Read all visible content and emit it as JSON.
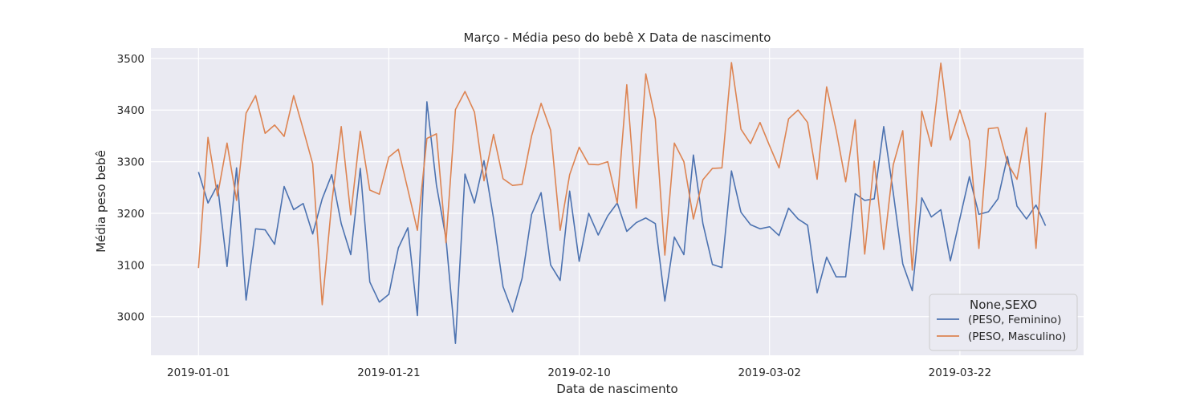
{
  "chart_data": {
    "type": "line",
    "title": "Março - Média peso do bebê X Data de nascimento",
    "xlabel": "Data de nascimento",
    "ylabel": "Média peso bebê",
    "x_start": "2019-01-01",
    "x_ticks": [
      "2019-01-01",
      "2019-01-21",
      "2019-02-10",
      "2019-03-02",
      "2019-03-22"
    ],
    "y_ticks": [
      3000,
      3100,
      3200,
      3300,
      3400,
      3500
    ],
    "xlim": [
      "2018-12-27",
      "2019-04-04"
    ],
    "ylim": [
      2925,
      3520
    ],
    "grid": true,
    "legend": {
      "title": "None,SEXO",
      "placement": "lower-right"
    },
    "series": [
      {
        "name": "(PESO, Feminino)",
        "color": "#4c72b0",
        "values": [
          3280,
          3220,
          3255,
          3097,
          3288,
          3032,
          3170,
          3168,
          3140,
          3252,
          3207,
          3219,
          3160,
          3228,
          3275,
          3180,
          3120,
          3287,
          3067,
          3028,
          3043,
          3133,
          3172,
          3002,
          3416,
          3255,
          3152,
          2948,
          3276,
          3220,
          3302,
          3190,
          3058,
          3009,
          3074,
          3198,
          3240,
          3100,
          3070,
          3243,
          3107,
          3200,
          3158,
          3195,
          3220,
          3165,
          3182,
          3191,
          3180,
          3030,
          3154,
          3120,
          3313,
          3180,
          3101,
          3095,
          3282,
          3202,
          3178,
          3170,
          3174,
          3157,
          3210,
          3189,
          3177,
          3046,
          3115,
          3077,
          3077,
          3238,
          3225,
          3228,
          3368,
          3240,
          3102,
          3050,
          3230,
          3193,
          3207,
          3108,
          3190,
          3271,
          3198,
          3203,
          3228,
          3310,
          3214,
          3189,
          3216,
          3176
        ]
      },
      {
        "name": "(PESO, Masculino)",
        "color": "#dd8452",
        "values": [
          3094,
          3347,
          3234,
          3336,
          3225,
          3394,
          3428,
          3355,
          3371,
          3349,
          3428,
          3363,
          3296,
          3023,
          3220,
          3368,
          3197,
          3359,
          3245,
          3237,
          3309,
          3324,
          3246,
          3167,
          3345,
          3354,
          3143,
          3401,
          3436,
          3396,
          3263,
          3353,
          3267,
          3254,
          3256,
          3350,
          3413,
          3361,
          3167,
          3275,
          3328,
          3295,
          3294,
          3300,
          3220,
          3449,
          3210,
          3470,
          3383,
          3119,
          3336,
          3300,
          3189,
          3265,
          3287,
          3288,
          3492,
          3363,
          3335,
          3376,
          3331,
          3288,
          3383,
          3400,
          3376,
          3266,
          3445,
          3361,
          3261,
          3381,
          3121,
          3301,
          3130,
          3294,
          3360,
          3090,
          3398,
          3330,
          3491,
          3342,
          3400,
          3341,
          3132,
          3364,
          3366,
          3297,
          3266,
          3366,
          3132,
          3395
        ]
      }
    ]
  }
}
